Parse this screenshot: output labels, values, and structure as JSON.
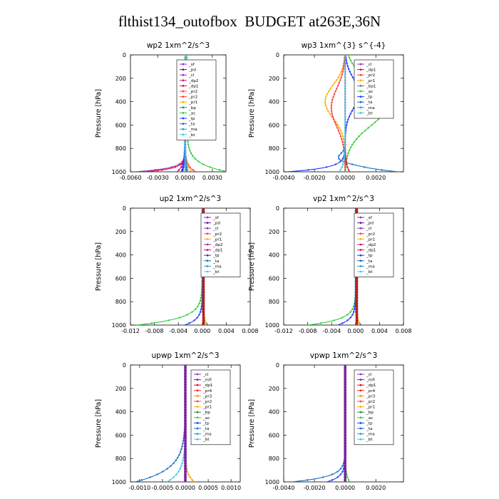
{
  "page_title": "flthist134_outofbox  BUDGET at263E,36N",
  "colors": {
    "sf": "#8a2be2",
    "pd": "#6a0dad",
    "cl": "#9932cc",
    "dp2": "#c71585",
    "dp1": "#e0103c",
    "pr2": "#ff4040",
    "pr1": "#ffb000",
    "pr3": "#ff8c00",
    "pr4": "#ff2020",
    "mfl": "#7b1fa2",
    "bp": "#2e8b57",
    "ac": "#32cd32",
    "tp": "#1e3cff",
    "ta": "#1a6fbf",
    "ma": "#20a0c0",
    "bt": "#40c8e8",
    "wide_band": "#b22222"
  },
  "chart_data": [
    {
      "type": "line",
      "title": "wp2  1xm^2/s^3",
      "ylabel": "Pressure [hPa]",
      "ylim": [
        1000,
        0
      ],
      "xlim": [
        -0.006,
        0.0045
      ],
      "xticks": [
        -0.006,
        -0.003,
        0.0,
        0.003
      ],
      "xtick_labels": [
        "-0.0060",
        "-0.0030",
        "0.0000",
        "0.0030"
      ],
      "yticks": [
        0,
        200,
        400,
        600,
        800,
        1000
      ],
      "legend": [
        "_sf",
        "_pd",
        "_cl",
        "_dp2",
        "_dp1",
        "_pr2",
        "_pr2",
        "_pr1",
        "_bp",
        "_ac",
        "_tp",
        "_ta",
        "_ma",
        "_bt"
      ],
      "series": [
        {
          "color": "sf",
          "x": 5e-05,
          "amp": 0.0001,
          "d": 60
        },
        {
          "color": "pd",
          "x": 0.0,
          "amp": -0.0003,
          "d": 60
        },
        {
          "color": "cl",
          "x": 0.0,
          "amp": -0.0056,
          "d": 30
        },
        {
          "color": "dp2",
          "x": 0.0,
          "amp": -0.0009,
          "d": 55
        },
        {
          "color": "dp1",
          "x": 0.0,
          "amp": -0.0045,
          "d": 28
        },
        {
          "color": "pr2",
          "x": 0.0,
          "amp": 0.0012,
          "d": 50
        },
        {
          "color": "pr1",
          "x": 0.0,
          "amp": 0.0008,
          "d": 50
        },
        {
          "color": "ac",
          "x": 0.0002,
          "amp": 0.0045,
          "d": 70
        },
        {
          "color": "tp",
          "x": 0.0,
          "amp": -0.0004,
          "d": 90
        },
        {
          "color": "ta",
          "x": 0.0,
          "amp": 0.0003,
          "d": 90
        },
        {
          "color": "ma",
          "x": 0.0,
          "amp": 0.0003,
          "d": 90
        },
        {
          "color": "bt",
          "x": 0.0,
          "amp": 0.0,
          "d": 90
        }
      ]
    },
    {
      "type": "line",
      "title": "wp3  1xm^{3} s^{-4}",
      "ylabel": "Pressure [hPa]",
      "ylim": [
        1000,
        0
      ],
      "xlim": [
        -0.004,
        0.0038
      ],
      "xticks": [
        -0.004,
        -0.002,
        0.0,
        0.002
      ],
      "xtick_labels": [
        "-0.0040",
        "-0.0020",
        "0.0000",
        "0.0020"
      ],
      "yticks": [
        0,
        200,
        400,
        600,
        800,
        1000
      ],
      "legend": [
        "_cl",
        "_dp1",
        "_pr2",
        "_pr1",
        "_bp1",
        "_ac",
        "_tp",
        "_ta",
        "_ma",
        "_bt"
      ],
      "series": [
        {
          "color": "cl",
          "x": 0.0,
          "amp": 0.0,
          "d": 90
        },
        {
          "color": "pr1",
          "bulge": -0.0013,
          "center": 400,
          "width": 200
        },
        {
          "color": "pr2",
          "bulge": -0.0009,
          "center": 450,
          "width": 230
        },
        {
          "color": "ac",
          "bulge": 0.0028,
          "center": 420,
          "width": 260
        },
        {
          "color": "tp",
          "bulge": 0.0009,
          "center": 330,
          "width": 180,
          "amp": -0.0038,
          "d": 35
        },
        {
          "color": "ta",
          "bulge": -0.0007,
          "center": 890,
          "width": 60,
          "amp": 0.0035,
          "d": 45
        },
        {
          "color": "dp1",
          "x": 0.0,
          "amp": 0.0003,
          "d": 60
        },
        {
          "color": "bt",
          "x": 0.0,
          "amp": -0.0004,
          "d": 60
        }
      ]
    },
    {
      "type": "line",
      "title": "up2  1xm^2/s^3",
      "ylabel": "Pressure [hPa]",
      "ylim": [
        1000,
        0
      ],
      "xlim": [
        -0.012,
        0.008
      ],
      "xticks": [
        -0.012,
        -0.008,
        -0.004,
        0.0,
        0.004,
        0.008
      ],
      "xtick_labels": [
        "-0.012",
        "-0.008",
        "-0.004",
        "0.000",
        "0.004",
        "0.008"
      ],
      "yticks": [
        0,
        200,
        400,
        600,
        800,
        1000
      ],
      "legend": [
        "_sf",
        "_pd",
        "_cl",
        "_pr2",
        "_pr1",
        "_dp2",
        "_dp1",
        "_tp",
        "_ta",
        "_ma",
        "_bt"
      ],
      "series": [
        {
          "color": "ac",
          "x": 0.0,
          "amp": -0.011,
          "d": 60
        },
        {
          "color": "tp",
          "x": 0.0,
          "amp": -0.003,
          "d": 50
        },
        {
          "color": "ta",
          "x": 0.0,
          "amp": 0.001,
          "d": 40
        },
        {
          "color": "pr1",
          "x": 0.0002,
          "amp": 0.0005,
          "d": 60
        },
        {
          "color": "wide_band",
          "x": 0.0002,
          "amp": 0.0,
          "d": 60,
          "thick": true
        }
      ]
    },
    {
      "type": "line",
      "title": "vp2  1xm^2/s^3",
      "ylabel": "Pressure [hPa]",
      "ylim": [
        1000,
        0
      ],
      "xlim": [
        -0.012,
        0.008
      ],
      "xticks": [
        -0.012,
        -0.008,
        -0.004,
        0.0,
        0.004,
        0.008
      ],
      "xtick_labels": [
        "-0.012",
        "-0.008",
        "-0.004",
        "0.000",
        "0.004",
        "0.008"
      ],
      "yticks": [
        0,
        200,
        400,
        600,
        800,
        1000
      ],
      "legend": [
        "_sf",
        "_pd",
        "_cl",
        "_pr2",
        "_pr1",
        "_dp2",
        "_dp1",
        "_tp",
        "_ta",
        "_ma",
        "_bt"
      ],
      "series": [
        {
          "color": "ac",
          "x": 0.0,
          "amp": -0.008,
          "d": 50
        },
        {
          "color": "tp",
          "x": 0.0,
          "amp": -0.003,
          "d": 50
        },
        {
          "color": "ta",
          "x": 0.0,
          "amp": 0.001,
          "d": 40
        },
        {
          "color": "pr1",
          "x": 0.0002,
          "amp": 0.0005,
          "d": 60
        },
        {
          "color": "wide_band",
          "x": 0.0002,
          "amp": 0.0,
          "d": 60,
          "thick": true
        }
      ]
    },
    {
      "type": "line",
      "title": "upwp  1xm^2/s^3",
      "ylabel": "Pressure [hPa]",
      "ylim": [
        1000,
        0
      ],
      "xlim": [
        -0.0012,
        0.0012
      ],
      "xticks": [
        -0.001,
        -0.0005,
        0.0,
        0.0005,
        0.001
      ],
      "xtick_labels": [
        "-0.0010",
        "-0.0005",
        "0.0000",
        "0.0005",
        "0.0010"
      ],
      "yticks": [
        0,
        200,
        400,
        600,
        800,
        1000
      ],
      "legend": [
        "_cl",
        "_mfl",
        "_dp1",
        "_pr4",
        "_pr3",
        "_pr2",
        "_pr1",
        "_bp",
        "_ac",
        "_tp",
        "_ta",
        "_ma",
        "_bt"
      ],
      "series": [
        {
          "color": "ta",
          "x": 0.0,
          "amp": -0.0011,
          "d": 110
        },
        {
          "color": "bt",
          "x": 0.0,
          "amp": -0.0004,
          "d": 90
        },
        {
          "color": "ac",
          "x": 0.0,
          "amp": 0.0002,
          "d": 60
        },
        {
          "color": "pr1",
          "x": 0.0,
          "amp": 0.0002,
          "d": 60
        },
        {
          "color": "mfl",
          "x": 0.0,
          "amp": 0.0,
          "d": 60,
          "thick": true
        }
      ]
    },
    {
      "type": "line",
      "title": "vpwp  1xm^2/s^3",
      "ylabel": "Pressure [hPa]",
      "ylim": [
        1000,
        0
      ],
      "xlim": [
        -0.004,
        0.0038
      ],
      "xticks": [
        -0.004,
        -0.002,
        0.0,
        0.002
      ],
      "xtick_labels": [
        "-0.0040",
        "-0.0020",
        "0.0000",
        "0.0020"
      ],
      "yticks": [
        0,
        200,
        400,
        600,
        800,
        1000
      ],
      "legend": [
        "_cl",
        "_mfl",
        "_dp1",
        "_pr4",
        "_pr3",
        "_pr2",
        "_pr1",
        "_bp",
        "_ac",
        "_tp",
        "_ta",
        "_ma",
        "_bt"
      ],
      "series": [
        {
          "color": "ta",
          "x": 0.0,
          "amp": -0.0035,
          "d": 45
        },
        {
          "color": "tp",
          "x": 0.0,
          "amp": -0.0012,
          "d": 45
        },
        {
          "color": "ac",
          "x": 0.0,
          "amp": 0.0003,
          "d": 60
        },
        {
          "color": "mfl",
          "x": 0.0,
          "amp": 0.0,
          "d": 60,
          "thick": true
        }
      ]
    }
  ]
}
